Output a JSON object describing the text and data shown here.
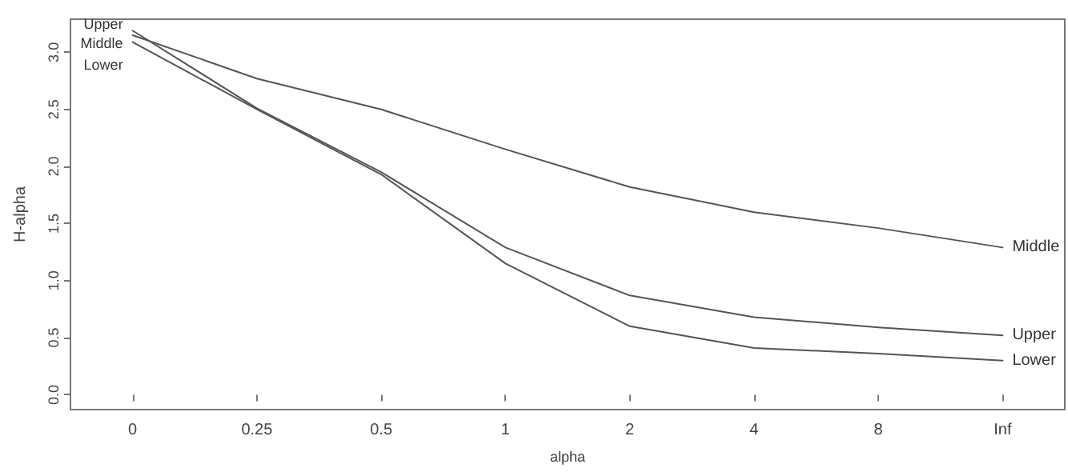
{
  "chart_data": {
    "type": "line",
    "xlabel": "alpha",
    "ylabel": "H-alpha",
    "categories": [
      "0",
      "0.25",
      "0.5",
      "1",
      "2",
      "4",
      "8",
      "Inf"
    ],
    "series": [
      {
        "name": "Upper",
        "color": "#555555",
        "values": [
          3.19,
          2.51,
          1.95,
          1.29,
          0.87,
          0.68,
          0.59,
          0.52
        ]
      },
      {
        "name": "Middle",
        "color": "#555555",
        "values": [
          3.15,
          2.77,
          2.5,
          2.15,
          1.82,
          1.6,
          1.46,
          1.29
        ]
      },
      {
        "name": "Lower",
        "color": "#555555",
        "values": [
          3.09,
          2.5,
          1.93,
          1.15,
          0.6,
          0.41,
          0.36,
          0.3
        ]
      }
    ],
    "ylim": [
      -0.13,
      3.29
    ],
    "yticks": [
      {
        "value": 0,
        "label": "0.0"
      },
      {
        "value": 0.5,
        "label": "0.5"
      },
      {
        "value": 1,
        "label": "1.0"
      },
      {
        "value": 1.5,
        "label": "1.5"
      },
      {
        "value": 2,
        "label": "2.0"
      },
      {
        "value": 2.5,
        "label": "2.5"
      },
      {
        "value": 3,
        "label": "3.0"
      }
    ],
    "grid": false,
    "legend": false,
    "marker": "none",
    "line_style": "solid"
  }
}
